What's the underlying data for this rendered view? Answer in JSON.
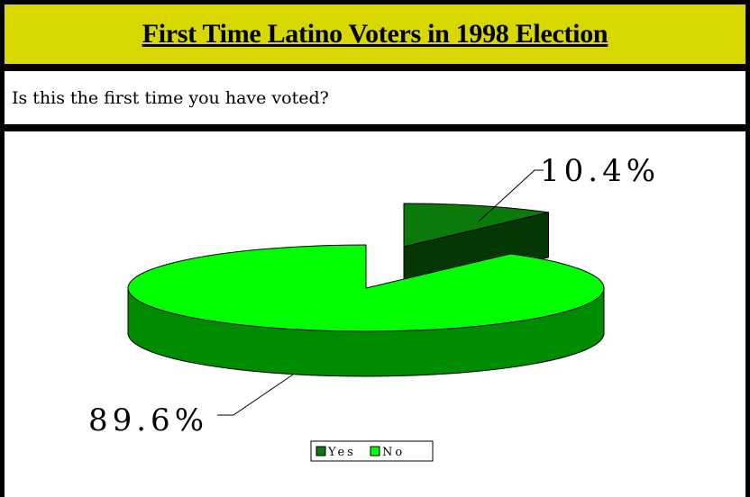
{
  "header": {
    "title": "First Time Latino Voters in 1998 Election"
  },
  "question": {
    "text": "Is this the first time you have voted?"
  },
  "chart_data": {
    "type": "pie",
    "variant": "3d-exploded",
    "categories": [
      "Yes",
      "No"
    ],
    "values": [
      10.4,
      89.6
    ],
    "data_labels": [
      "10.4%",
      "89.6%"
    ],
    "colors": {
      "Yes": "#0b7a0b",
      "No": "#00ff00"
    },
    "legend": {
      "placement": "bottom",
      "entries": [
        "Yes",
        "No"
      ]
    }
  }
}
